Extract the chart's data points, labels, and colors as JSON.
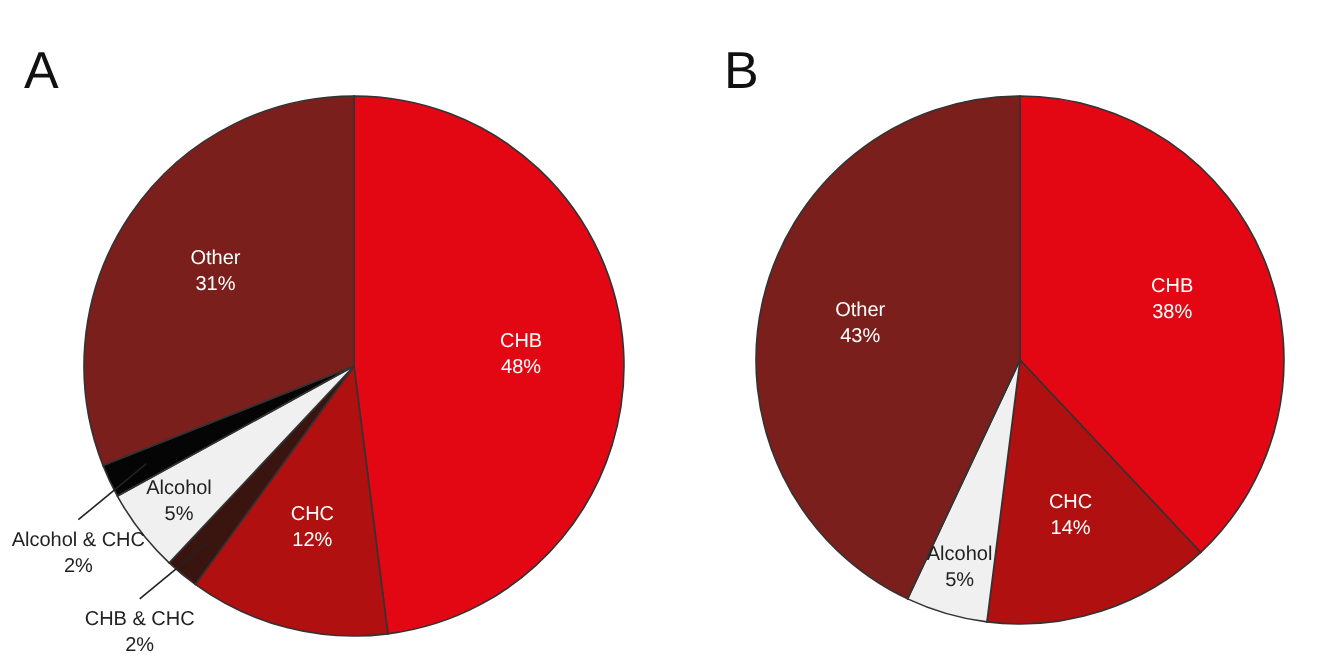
{
  "chart_data": [
    {
      "type": "pie",
      "title": "A",
      "categories": [
        "CHB",
        "CHC",
        "CHB & CHC",
        "Alcohol",
        "Alcohol & CHC",
        "Other"
      ],
      "values": [
        48,
        12,
        2,
        5,
        2,
        31
      ],
      "value_labels": [
        "48%",
        "12%",
        "2%",
        "5%",
        "2%",
        "31%"
      ],
      "colors": [
        "#e30613",
        "#b0100f",
        "#3a1510",
        "#f0f0f0",
        "#050505",
        "#7a1f1b"
      ]
    },
    {
      "type": "pie",
      "title": "B",
      "categories": [
        "CHB",
        "CHC",
        "Alcohol",
        "Other"
      ],
      "values": [
        38,
        14,
        5,
        43
      ],
      "value_labels": [
        "38%",
        "14%",
        "5%",
        "43%"
      ],
      "colors": [
        "#e30613",
        "#b0100f",
        "#f0f0f0",
        "#7a1f1b"
      ]
    }
  ]
}
